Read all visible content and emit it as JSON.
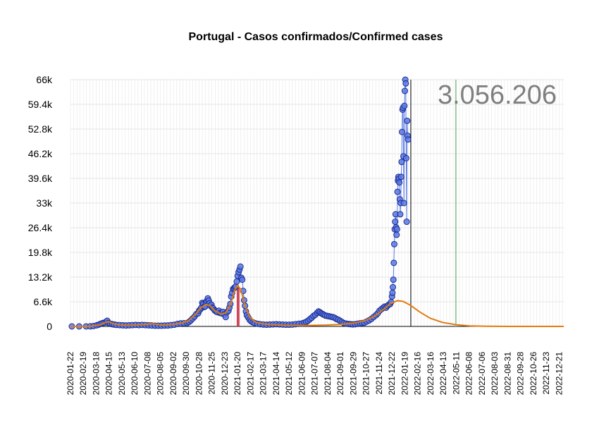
{
  "chart_data": {
    "type": "scatter",
    "title": "Portugal - Casos confirmados/Confirmed cases",
    "xlabel": "",
    "ylabel": "",
    "x_range": [
      "2020-01-22",
      "2022-12-31"
    ],
    "ylim": [
      0,
      66000
    ],
    "y_ticks": [
      "0",
      "6.6k",
      "13.2k",
      "19.8k",
      "26.4k",
      "33k",
      "39.6k",
      "46.2k",
      "52.8k",
      "59.4k",
      "66k"
    ],
    "x_ticks": [
      "2020-01-22",
      "2020-02-19",
      "2020-03-18",
      "2020-04-15",
      "2020-05-13",
      "2020-06-10",
      "2020-07-08",
      "2020-08-05",
      "2020-09-02",
      "2020-09-30",
      "2020-10-28",
      "2020-11-25",
      "2020-12-23",
      "2021-01-20",
      "2021-02-17",
      "2021-03-17",
      "2021-04-14",
      "2021-05-12",
      "2021-06-09",
      "2021-07-07",
      "2021-08-04",
      "2021-09-01",
      "2021-09-29",
      "2021-10-27",
      "2021-11-24",
      "2021-12-22",
      "2022-01-19",
      "2022-02-16",
      "2022-03-16",
      "2022-04-13",
      "2022-05-11",
      "2022-06-08",
      "2022-07-06",
      "2022-08-03",
      "2022-08-31",
      "2022-09-28",
      "2022-10-26",
      "2022-11-23",
      "2022-12-21"
    ],
    "grid": true,
    "legend": "none",
    "total_label": "3.056.206",
    "today_line": "2022-02-01",
    "forecast_line": "2022-05-10",
    "highlight_bar": {
      "date": "2021-01-21",
      "value": 10500
    },
    "daily_cases": [
      [
        "2020-01-25",
        0
      ],
      [
        "2020-02-10",
        0
      ],
      [
        "2020-02-25",
        0
      ],
      [
        "2020-03-05",
        20
      ],
      [
        "2020-03-12",
        100
      ],
      [
        "2020-03-19",
        300
      ],
      [
        "2020-03-24",
        500
      ],
      [
        "2020-03-28",
        700
      ],
      [
        "2020-04-01",
        900
      ],
      [
        "2020-04-05",
        1000
      ],
      [
        "2020-04-09",
        1300
      ],
      [
        "2020-04-11",
        1500
      ],
      [
        "2020-04-14",
        900
      ],
      [
        "2020-04-18",
        700
      ],
      [
        "2020-04-22",
        600
      ],
      [
        "2020-04-26",
        500
      ],
      [
        "2020-05-01",
        400
      ],
      [
        "2020-05-08",
        350
      ],
      [
        "2020-05-15",
        300
      ],
      [
        "2020-05-22",
        250
      ],
      [
        "2020-05-29",
        300
      ],
      [
        "2020-06-05",
        350
      ],
      [
        "2020-06-12",
        400
      ],
      [
        "2020-06-19",
        350
      ],
      [
        "2020-06-26",
        400
      ],
      [
        "2020-07-03",
        350
      ],
      [
        "2020-07-10",
        300
      ],
      [
        "2020-07-17",
        250
      ],
      [
        "2020-07-24",
        200
      ],
      [
        "2020-07-31",
        180
      ],
      [
        "2020-08-07",
        200
      ],
      [
        "2020-08-14",
        230
      ],
      [
        "2020-08-21",
        250
      ],
      [
        "2020-08-28",
        350
      ],
      [
        "2020-09-04",
        450
      ],
      [
        "2020-09-11",
        650
      ],
      [
        "2020-09-18",
        800
      ],
      [
        "2020-09-25",
        850
      ],
      [
        "2020-10-02",
        900
      ],
      [
        "2020-10-06",
        1200
      ],
      [
        "2020-10-10",
        1600
      ],
      [
        "2020-10-14",
        2100
      ],
      [
        "2020-10-18",
        2600
      ],
      [
        "2020-10-22",
        3300
      ],
      [
        "2020-10-26",
        3500
      ],
      [
        "2020-10-28",
        4200
      ],
      [
        "2020-10-31",
        4600
      ],
      [
        "2020-11-02",
        5000
      ],
      [
        "2020-11-04",
        6300
      ],
      [
        "2020-11-06",
        6000
      ],
      [
        "2020-11-08",
        5200
      ],
      [
        "2020-11-10",
        5300
      ],
      [
        "2020-11-12",
        6500
      ],
      [
        "2020-11-14",
        6800
      ],
      [
        "2020-11-16",
        7500
      ],
      [
        "2020-11-18",
        6900
      ],
      [
        "2020-11-20",
        6200
      ],
      [
        "2020-11-22",
        5500
      ],
      [
        "2020-11-24",
        5800
      ],
      [
        "2020-11-26",
        5000
      ],
      [
        "2020-11-28",
        4800
      ],
      [
        "2020-12-01",
        4300
      ],
      [
        "2020-12-04",
        4000
      ],
      [
        "2020-12-07",
        3800
      ],
      [
        "2020-12-10",
        4200
      ],
      [
        "2020-12-13",
        3600
      ],
      [
        "2020-12-16",
        3500
      ],
      [
        "2020-12-19",
        3900
      ],
      [
        "2020-12-22",
        3200
      ],
      [
        "2020-12-25",
        2500
      ],
      [
        "2020-12-28",
        3800
      ],
      [
        "2020-12-31",
        4200
      ],
      [
        "2021-01-02",
        5000
      ],
      [
        "2021-01-04",
        6000
      ],
      [
        "2021-01-06",
        8000
      ],
      [
        "2021-01-08",
        9000
      ],
      [
        "2021-01-10",
        10000
      ],
      [
        "2021-01-12",
        10200
      ],
      [
        "2021-01-14",
        10500
      ],
      [
        "2021-01-16",
        10700
      ],
      [
        "2021-01-18",
        12000
      ],
      [
        "2021-01-20",
        13500
      ],
      [
        "2021-01-22",
        14500
      ],
      [
        "2021-01-24",
        15200
      ],
      [
        "2021-01-26",
        16000
      ],
      [
        "2021-01-28",
        13000
      ],
      [
        "2021-01-30",
        12500
      ],
      [
        "2021-02-01",
        9500
      ],
      [
        "2021-02-03",
        7000
      ],
      [
        "2021-02-05",
        5500
      ],
      [
        "2021-02-07",
        4000
      ],
      [
        "2021-02-09",
        3000
      ],
      [
        "2021-02-12",
        2400
      ],
      [
        "2021-02-15",
        1800
      ],
      [
        "2021-02-18",
        1400
      ],
      [
        "2021-02-22",
        1100
      ],
      [
        "2021-02-26",
        900
      ],
      [
        "2021-03-04",
        700
      ],
      [
        "2021-03-10",
        600
      ],
      [
        "2021-03-17",
        500
      ],
      [
        "2021-03-24",
        450
      ],
      [
        "2021-03-31",
        500
      ],
      [
        "2021-04-07",
        550
      ],
      [
        "2021-04-14",
        600
      ],
      [
        "2021-04-21",
        550
      ],
      [
        "2021-04-28",
        500
      ],
      [
        "2021-05-05",
        450
      ],
      [
        "2021-05-12",
        450
      ],
      [
        "2021-05-19",
        500
      ],
      [
        "2021-05-26",
        600
      ],
      [
        "2021-06-02",
        700
      ],
      [
        "2021-06-09",
        800
      ],
      [
        "2021-06-14",
        1000
      ],
      [
        "2021-06-18",
        1200
      ],
      [
        "2021-06-22",
        1500
      ],
      [
        "2021-06-26",
        1900
      ],
      [
        "2021-06-30",
        2300
      ],
      [
        "2021-07-04",
        2800
      ],
      [
        "2021-07-08",
        3100
      ],
      [
        "2021-07-12",
        3600
      ],
      [
        "2021-07-15",
        4000
      ],
      [
        "2021-07-18",
        3800
      ],
      [
        "2021-07-21",
        3500
      ],
      [
        "2021-07-24",
        3300
      ],
      [
        "2021-07-27",
        3100
      ],
      [
        "2021-07-30",
        2900
      ],
      [
        "2021-08-03",
        2800
      ],
      [
        "2021-08-07",
        2700
      ],
      [
        "2021-08-11",
        2600
      ],
      [
        "2021-08-15",
        2500
      ],
      [
        "2021-08-19",
        2300
      ],
      [
        "2021-08-23",
        2000
      ],
      [
        "2021-08-27",
        1800
      ],
      [
        "2021-08-31",
        1500
      ],
      [
        "2021-09-04",
        1200
      ],
      [
        "2021-09-08",
        900
      ],
      [
        "2021-09-13",
        750
      ],
      [
        "2021-09-18",
        650
      ],
      [
        "2021-09-23",
        600
      ],
      [
        "2021-09-28",
        550
      ],
      [
        "2021-10-03",
        600
      ],
      [
        "2021-10-08",
        700
      ],
      [
        "2021-10-13",
        800
      ],
      [
        "2021-10-18",
        900
      ],
      [
        "2021-10-23",
        1000
      ],
      [
        "2021-10-28",
        1300
      ],
      [
        "2021-11-02",
        1600
      ],
      [
        "2021-11-07",
        2000
      ],
      [
        "2021-11-12",
        2500
      ],
      [
        "2021-11-17",
        3000
      ],
      [
        "2021-11-21",
        3500
      ],
      [
        "2021-11-25",
        4200
      ],
      [
        "2021-11-29",
        4600
      ],
      [
        "2021-12-03",
        5000
      ],
      [
        "2021-12-06",
        5300
      ],
      [
        "2021-12-09",
        5000
      ],
      [
        "2021-12-12",
        5500
      ],
      [
        "2021-12-15",
        5800
      ],
      [
        "2021-12-18",
        6000
      ],
      [
        "2021-12-20",
        6500
      ],
      [
        "2021-12-22",
        8000
      ],
      [
        "2021-12-23",
        9000
      ],
      [
        "2021-12-24",
        10500
      ],
      [
        "2021-12-25",
        12500
      ],
      [
        "2021-12-26",
        17000
      ],
      [
        "2021-12-27",
        22000
      ],
      [
        "2021-12-28",
        26000
      ],
      [
        "2021-12-29",
        28000
      ],
      [
        "2021-12-30",
        30000
      ],
      [
        "2021-12-31",
        26500
      ],
      [
        "2022-01-01",
        24500
      ],
      [
        "2022-01-02",
        26000
      ],
      [
        "2022-01-03",
        36000
      ],
      [
        "2022-01-04",
        39000
      ],
      [
        "2022-01-05",
        40000
      ],
      [
        "2022-01-06",
        39500
      ],
      [
        "2022-01-07",
        38500
      ],
      [
        "2022-01-08",
        34000
      ],
      [
        "2022-01-09",
        30000
      ],
      [
        "2022-01-10",
        33000
      ],
      [
        "2022-01-11",
        40000
      ],
      [
        "2022-01-12",
        44000
      ],
      [
        "2022-01-13",
        52000
      ],
      [
        "2022-01-14",
        58000
      ],
      [
        "2022-01-15",
        58500
      ],
      [
        "2022-01-16",
        45500
      ],
      [
        "2022-01-17",
        33000
      ],
      [
        "2022-01-18",
        59000
      ],
      [
        "2022-01-19",
        63000
      ],
      [
        "2022-01-20",
        66000
      ],
      [
        "2022-01-21",
        65000
      ],
      [
        "2022-01-22",
        45000
      ],
      [
        "2022-01-23",
        28000
      ],
      [
        "2022-01-24",
        55000
      ],
      [
        "2022-01-25",
        51000
      ],
      [
        "2022-01-26",
        50000
      ]
    ],
    "fit_curve": [
      [
        "2020-01-22",
        0
      ],
      [
        "2020-03-01",
        0
      ],
      [
        "2020-03-25",
        400
      ],
      [
        "2020-04-08",
        1100
      ],
      [
        "2020-04-15",
        1300
      ],
      [
        "2020-04-25",
        700
      ],
      [
        "2020-05-10",
        350
      ],
      [
        "2020-06-01",
        300
      ],
      [
        "2020-07-01",
        500
      ],
      [
        "2020-07-20",
        700
      ],
      [
        "2020-08-10",
        350
      ],
      [
        "2020-09-01",
        500
      ],
      [
        "2020-09-20",
        900
      ],
      [
        "2020-10-05",
        1500
      ],
      [
        "2020-10-20",
        3200
      ],
      [
        "2020-11-01",
        5000
      ],
      [
        "2020-11-12",
        5900
      ],
      [
        "2020-11-20",
        5600
      ],
      [
        "2020-12-01",
        4200
      ],
      [
        "2020-12-15",
        3300
      ],
      [
        "2020-12-25",
        3600
      ],
      [
        "2021-01-05",
        6000
      ],
      [
        "2021-01-14",
        9800
      ],
      [
        "2021-01-20",
        11000
      ],
      [
        "2021-01-27",
        9800
      ],
      [
        "2021-02-05",
        5500
      ],
      [
        "2021-02-15",
        2500
      ],
      [
        "2021-03-01",
        1100
      ],
      [
        "2021-03-20",
        600
      ],
      [
        "2021-05-01",
        300
      ],
      [
        "2021-06-15",
        250
      ],
      [
        "2021-08-01",
        350
      ],
      [
        "2021-09-01",
        550
      ],
      [
        "2021-10-01",
        900
      ],
      [
        "2021-10-25",
        1600
      ],
      [
        "2021-11-15",
        2800
      ],
      [
        "2021-12-05",
        4700
      ],
      [
        "2021-12-20",
        6200
      ],
      [
        "2022-01-03",
        6900
      ],
      [
        "2022-01-15",
        6700
      ],
      [
        "2022-02-01",
        5600
      ],
      [
        "2022-02-20",
        3900
      ],
      [
        "2022-03-15",
        2200
      ],
      [
        "2022-04-10",
        1100
      ],
      [
        "2022-05-10",
        450
      ],
      [
        "2022-06-10",
        150
      ],
      [
        "2022-07-15",
        40
      ],
      [
        "2022-09-01",
        5
      ],
      [
        "2022-12-31",
        0
      ]
    ],
    "colors": {
      "points_fill": "#5b7be8",
      "points_stroke": "#1c2a8a",
      "fit_line": "#e07b12",
      "today_line": "#000000",
      "forecast_line": "#9ec99e",
      "highlight_bar": "#c8283c",
      "grid": "#e6e6e6",
      "total_text": "#7f7f7f"
    }
  }
}
